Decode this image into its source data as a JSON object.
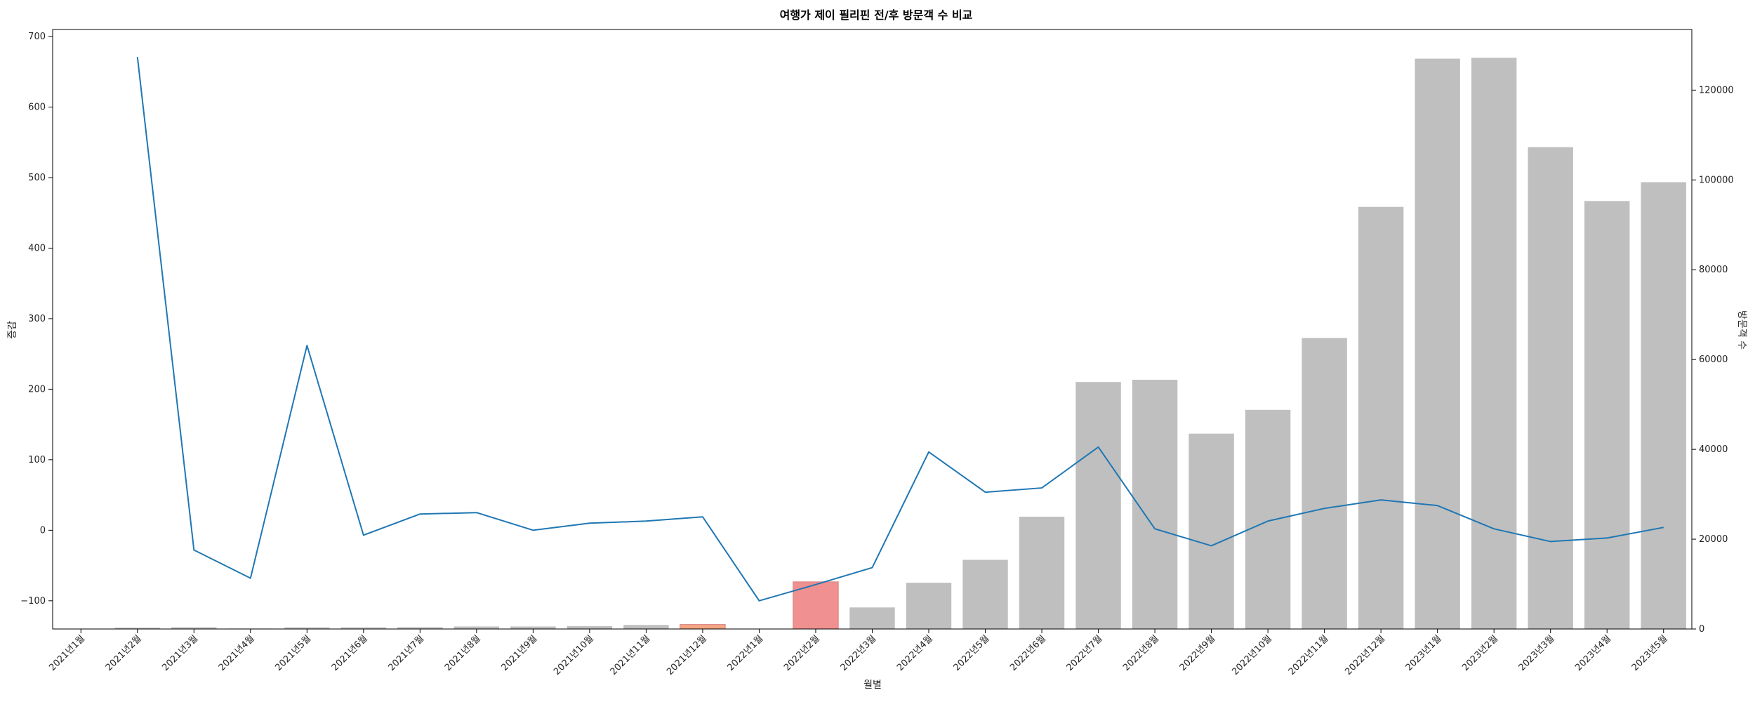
{
  "chart_data": {
    "type": "bar+line",
    "title": "여행가 제이 필리핀 전/후 방문객 수 비교",
    "xlabel": "월별",
    "ylabel_left": "증감",
    "ylabel_right": "방문객 수",
    "categories": [
      "2021년1월",
      "2021년2월",
      "2021년3월",
      "2021년4월",
      "2021년5월",
      "2021년6월",
      "2021년7월",
      "2021년8월",
      "2021년9월",
      "2021년10월",
      "2021년11월",
      "2021년12월",
      "2022년1월",
      "2022년2월",
      "2022년3월",
      "2022년4월",
      "2022년5월",
      "2022년6월",
      "2022년7월",
      "2022년8월",
      "2022년9월",
      "2022년10월",
      "2022년11월",
      "2022년12월",
      "2023년1월",
      "2023년2월",
      "2023년3월",
      "2023년4월",
      "2023년5월"
    ],
    "series": [
      {
        "kind": "bar",
        "axis": "right",
        "values": [
          40,
          300,
          380,
          100,
          360,
          360,
          400,
          560,
          560,
          640,
          900,
          1000,
          30,
          10500,
          4800,
          10300,
          15400,
          25000,
          55000,
          55500,
          43500,
          48800,
          64800,
          94000,
          127000,
          127200,
          107300,
          95300,
          99500
        ],
        "color": "#bfbfbf",
        "highlight": {
          "11": "#f4a582",
          "13": "#f09090"
        }
      },
      {
        "kind": "line",
        "axis": "left",
        "values": [
          null,
          671,
          -28,
          -68,
          262,
          -7,
          23,
          25,
          0,
          10,
          13,
          19,
          -100,
          -77,
          -53,
          111,
          54,
          60,
          118,
          2,
          -22,
          13,
          31,
          43,
          35,
          2,
          -16,
          -11,
          4
        ],
        "color": "#1f77b4"
      }
    ],
    "ylim_left": [
      -140,
      710
    ],
    "ylim_right": [
      0,
      133500
    ],
    "yticks_left": [
      -100,
      0,
      100,
      200,
      300,
      400,
      500,
      600,
      700
    ],
    "yticks_left_labels": [
      "−100",
      "0",
      "100",
      "200",
      "300",
      "400",
      "500",
      "600",
      "700"
    ],
    "yticks_right": [
      0,
      20000,
      40000,
      60000,
      80000,
      100000,
      120000
    ],
    "yticks_right_labels": [
      "0",
      "20000",
      "40000",
      "60000",
      "80000",
      "100000",
      "120000"
    ],
    "grid": false,
    "legend": "none"
  }
}
